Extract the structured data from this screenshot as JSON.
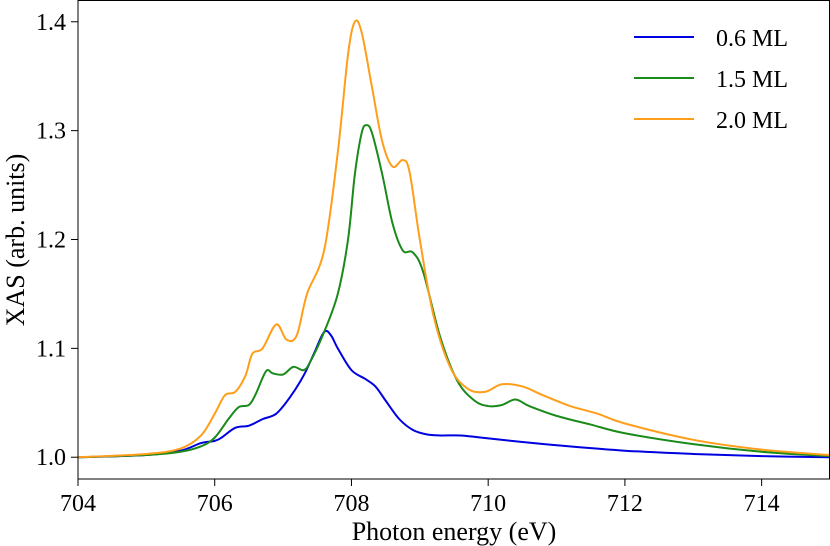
{
  "chart_data": {
    "type": "line",
    "title": "",
    "xlabel": "Photon energy (eV)",
    "ylabel": "XAS (arb. units)",
    "xlim": [
      704,
      715
    ],
    "ylim": [
      0.98,
      1.42
    ],
    "x_ticks": [
      704,
      706,
      708,
      710,
      712,
      714
    ],
    "y_ticks": [
      1.0,
      1.1,
      1.2,
      1.3,
      1.4
    ],
    "x_tick_labels": [
      "704",
      "706",
      "708",
      "710",
      "712",
      "714"
    ],
    "y_tick_labels": [
      "1.0",
      "1.1",
      "1.2",
      "1.3",
      "1.4"
    ],
    "grid": false,
    "legend_position": "top-right",
    "series": [
      {
        "name": "0.6 ML",
        "color": "#0000e0",
        "points": [
          [
            704.0,
            1.0
          ],
          [
            705.0,
            1.002
          ],
          [
            705.5,
            1.006
          ],
          [
            705.8,
            1.013
          ],
          [
            706.0,
            1.015
          ],
          [
            706.1,
            1.018
          ],
          [
            706.3,
            1.027
          ],
          [
            706.5,
            1.029
          ],
          [
            706.7,
            1.035
          ],
          [
            706.9,
            1.04
          ],
          [
            707.1,
            1.055
          ],
          [
            707.3,
            1.075
          ],
          [
            707.45,
            1.095
          ],
          [
            707.6,
            1.115
          ],
          [
            707.7,
            1.112
          ],
          [
            707.8,
            1.1
          ],
          [
            708.0,
            1.08
          ],
          [
            708.2,
            1.072
          ],
          [
            708.35,
            1.065
          ],
          [
            708.5,
            1.052
          ],
          [
            708.7,
            1.035
          ],
          [
            708.9,
            1.025
          ],
          [
            709.1,
            1.021
          ],
          [
            709.3,
            1.02
          ],
          [
            709.6,
            1.02
          ],
          [
            709.9,
            1.018
          ],
          [
            710.5,
            1.014
          ],
          [
            711.0,
            1.011
          ],
          [
            712.0,
            1.006
          ],
          [
            713.0,
            1.003
          ],
          [
            714.0,
            1.001
          ],
          [
            715.0,
            1.0
          ]
        ]
      },
      {
        "name": "1.5 ML",
        "color": "#1a8a1a",
        "points": [
          [
            704.0,
            1.0
          ],
          [
            705.0,
            1.002
          ],
          [
            705.5,
            1.005
          ],
          [
            705.8,
            1.01
          ],
          [
            706.0,
            1.018
          ],
          [
            706.2,
            1.035
          ],
          [
            706.35,
            1.046
          ],
          [
            706.5,
            1.048
          ],
          [
            706.6,
            1.058
          ],
          [
            706.75,
            1.079
          ],
          [
            706.85,
            1.077
          ],
          [
            707.0,
            1.076
          ],
          [
            707.15,
            1.083
          ],
          [
            707.3,
            1.08
          ],
          [
            707.4,
            1.088
          ],
          [
            707.6,
            1.115
          ],
          [
            707.8,
            1.15
          ],
          [
            707.95,
            1.2
          ],
          [
            708.05,
            1.26
          ],
          [
            708.15,
            1.298
          ],
          [
            708.22,
            1.305
          ],
          [
            708.3,
            1.298
          ],
          [
            708.45,
            1.26
          ],
          [
            708.6,
            1.215
          ],
          [
            708.75,
            1.19
          ],
          [
            708.9,
            1.188
          ],
          [
            709.05,
            1.17
          ],
          [
            709.3,
            1.11
          ],
          [
            709.55,
            1.07
          ],
          [
            709.8,
            1.052
          ],
          [
            710.0,
            1.047
          ],
          [
            710.2,
            1.048
          ],
          [
            710.4,
            1.053
          ],
          [
            710.6,
            1.047
          ],
          [
            711.0,
            1.038
          ],
          [
            711.5,
            1.03
          ],
          [
            712.0,
            1.022
          ],
          [
            713.0,
            1.012
          ],
          [
            714.0,
            1.005
          ],
          [
            715.0,
            1.001
          ]
        ]
      },
      {
        "name": "2.0 ML",
        "color": "#ff9e1a",
        "points": [
          [
            704.0,
            1.0
          ],
          [
            705.0,
            1.003
          ],
          [
            705.5,
            1.008
          ],
          [
            705.8,
            1.02
          ],
          [
            706.0,
            1.04
          ],
          [
            706.15,
            1.057
          ],
          [
            706.3,
            1.06
          ],
          [
            706.45,
            1.075
          ],
          [
            706.55,
            1.095
          ],
          [
            706.7,
            1.1
          ],
          [
            706.9,
            1.122
          ],
          [
            707.05,
            1.108
          ],
          [
            707.2,
            1.112
          ],
          [
            707.35,
            1.15
          ],
          [
            707.6,
            1.19
          ],
          [
            707.8,
            1.28
          ],
          [
            707.95,
            1.37
          ],
          [
            708.05,
            1.4
          ],
          [
            708.15,
            1.39
          ],
          [
            708.3,
            1.34
          ],
          [
            708.45,
            1.29
          ],
          [
            708.6,
            1.267
          ],
          [
            708.75,
            1.273
          ],
          [
            708.85,
            1.262
          ],
          [
            709.0,
            1.2
          ],
          [
            709.2,
            1.13
          ],
          [
            709.45,
            1.082
          ],
          [
            709.7,
            1.063
          ],
          [
            709.95,
            1.06
          ],
          [
            710.2,
            1.067
          ],
          [
            710.5,
            1.065
          ],
          [
            710.8,
            1.057
          ],
          [
            711.2,
            1.047
          ],
          [
            711.6,
            1.04
          ],
          [
            712.0,
            1.031
          ],
          [
            713.0,
            1.016
          ],
          [
            714.0,
            1.007
          ],
          [
            715.0,
            1.002
          ]
        ]
      }
    ]
  }
}
